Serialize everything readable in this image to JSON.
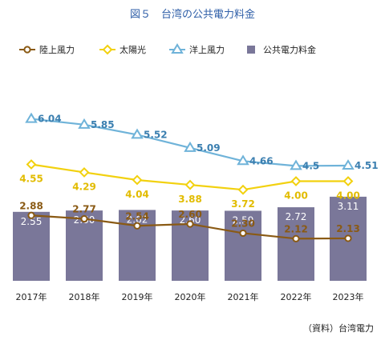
{
  "title": "図５　台湾の公共電力料金",
  "source": "（資料）台湾電力",
  "colors": {
    "onshore_wind": "#8a5a14",
    "solar": "#f2d10f",
    "offshore_wind": "#6fb3d9",
    "tariff_bar": "#7a7799",
    "title": "#2f5fa8"
  },
  "chart_data": {
    "type": "bar",
    "categories": [
      "2017年",
      "2018年",
      "2019年",
      "2020年",
      "2021年",
      "2022年",
      "2023年"
    ],
    "series": [
      {
        "name": "陸上風力",
        "type": "line",
        "marker": "circle",
        "color": "#8a5a14",
        "values": [
          2.88,
          2.77,
          2.54,
          2.6,
          2.3,
          2.12,
          2.13
        ],
        "labels": [
          "2.88",
          "2.77",
          "2.54",
          "2.60",
          "2.30",
          "2.12",
          "2.13"
        ]
      },
      {
        "name": "太陽光",
        "type": "line",
        "marker": "diamond",
        "color": "#f2d10f",
        "values": [
          4.55,
          4.29,
          4.04,
          3.88,
          3.72,
          4.0,
          4.0
        ],
        "labels": [
          "4.55",
          "4.29",
          "4.04",
          "3.88",
          "3.72",
          "4.00",
          "4.00"
        ]
      },
      {
        "name": "洋上風力",
        "type": "line",
        "marker": "triangle",
        "color": "#6fb3d9",
        "values": [
          6.04,
          5.85,
          5.52,
          5.09,
          4.66,
          4.5,
          4.51
        ],
        "labels": [
          "6.04",
          "5.85",
          "5.52",
          "5.09",
          "4.66",
          "4.5",
          "4.51"
        ]
      },
      {
        "name": "公共電力料金",
        "type": "bar",
        "marker": "square",
        "color": "#7a7799",
        "values": [
          2.55,
          2.6,
          2.62,
          2.6,
          2.59,
          2.72,
          3.11
        ],
        "labels": [
          "2.55",
          "2.60",
          "2.62",
          "2.60",
          "2.59",
          "2.72",
          "3.11"
        ]
      }
    ],
    "legend_position": "top",
    "grid": false
  }
}
